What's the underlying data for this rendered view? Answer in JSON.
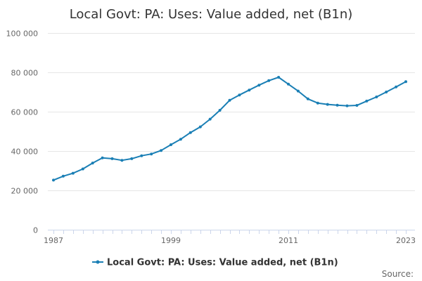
{
  "chart_data": {
    "type": "line",
    "title": "Local Govt: PA: Uses: Value added, net (B1n)",
    "xlabel": "",
    "ylabel": "",
    "x_ticks": [
      "1987",
      "1999",
      "2011",
      "2023"
    ],
    "y_ticks": [
      "0",
      "20 000",
      "40 000",
      "60 000",
      "80 000",
      "100 000"
    ],
    "xlim": [
      1987,
      2023
    ],
    "ylim": [
      0,
      100000
    ],
    "grid": true,
    "legend_position": "bottom",
    "source_label": "Source:",
    "color": "#1a7fb5",
    "series": [
      {
        "name": "Local Govt: PA: Uses: Value added, net (B1n)",
        "x": [
          1987,
          1988,
          1989,
          1990,
          1991,
          1992,
          1993,
          1994,
          1995,
          1996,
          1997,
          1998,
          1999,
          2000,
          2001,
          2002,
          2003,
          2004,
          2005,
          2006,
          2007,
          2008,
          2009,
          2010,
          2011,
          2012,
          2013,
          2014,
          2015,
          2016,
          2017,
          2018,
          2019,
          2020,
          2021,
          2022,
          2023
        ],
        "values": [
          25200,
          27200,
          28700,
          30900,
          33900,
          36500,
          36100,
          35300,
          36100,
          37600,
          38500,
          40300,
          43200,
          46000,
          49400,
          52300,
          56200,
          60700,
          65800,
          68500,
          71000,
          73500,
          75800,
          77500,
          74000,
          70500,
          66500,
          64400,
          63700,
          63300,
          63000,
          63200,
          65400,
          67500,
          70000,
          72600,
          75300
        ]
      }
    ]
  }
}
